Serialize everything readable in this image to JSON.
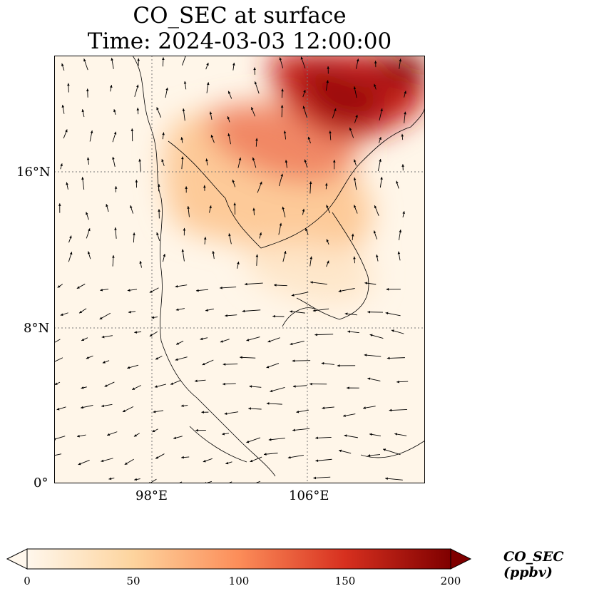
{
  "title": {
    "line1": "CO_SEC at surface",
    "line2": "Time: 2024-03-03 12:00:00"
  },
  "map": {
    "field": "CO_SEC",
    "level": "surface",
    "extent": {
      "lon": [
        93,
        112
      ],
      "lat": [
        0,
        22
      ]
    },
    "gridlines": {
      "lon": [
        98,
        106
      ],
      "lat": [
        8,
        16
      ],
      "style": "dotted"
    },
    "lat_ticks": [
      {
        "value": 16,
        "label": "16°N"
      },
      {
        "value": 8,
        "label": "8°N"
      },
      {
        "value": 0,
        "label": "0°"
      }
    ],
    "lon_ticks": [
      {
        "value": 98,
        "label": "98°E"
      },
      {
        "value": 106,
        "label": "106°E"
      }
    ],
    "concentration_areas": [
      {
        "name": "north-vietnam-laos-plume",
        "lon": 105.2,
        "lat": 19.8,
        "value": 175
      },
      {
        "name": "gulf-tonkin-plume",
        "lon": 108.3,
        "lat": 20.6,
        "value": 190
      },
      {
        "name": "north-thailand-plume",
        "lon": 102.0,
        "lat": 17.5,
        "value": 110
      },
      {
        "name": "laos-central",
        "lon": 104.0,
        "lat": 17.0,
        "value": 85
      },
      {
        "name": "cambodia-haze",
        "lon": 104.5,
        "lat": 13.0,
        "value": 35
      }
    ],
    "wind_vectors": "quiver"
  },
  "colorbar": {
    "colormap": "OrRd",
    "min": 0,
    "max": 200,
    "ticks": [
      "0",
      "50",
      "100",
      "150",
      "200"
    ],
    "label": "CO_SEC (ppbv)",
    "extend": "both"
  }
}
